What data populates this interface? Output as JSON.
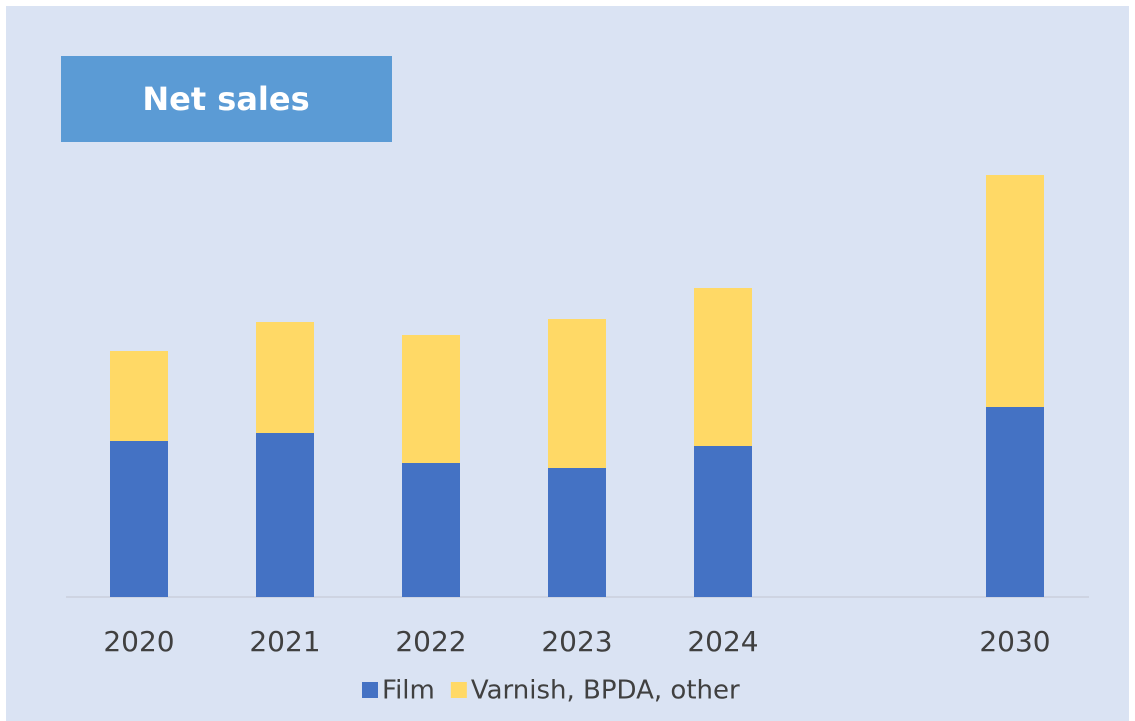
{
  "chart_data": {
    "type": "bar",
    "stacked": true,
    "title": "Net sales",
    "categories": [
      "2020",
      "2021",
      "2022",
      "2023",
      "2024",
      null,
      "2030"
    ],
    "series": [
      {
        "name": "Film",
        "color": "#4472c4",
        "values": [
          156,
          164,
          134,
          129,
          151,
          null,
          190
        ]
      },
      {
        "name": "Varnish, BPDA, other",
        "color": "#ffd966",
        "values": [
          90,
          111,
          128,
          149,
          158,
          null,
          232
        ]
      }
    ],
    "ylim": [
      0,
      440
    ]
  }
}
